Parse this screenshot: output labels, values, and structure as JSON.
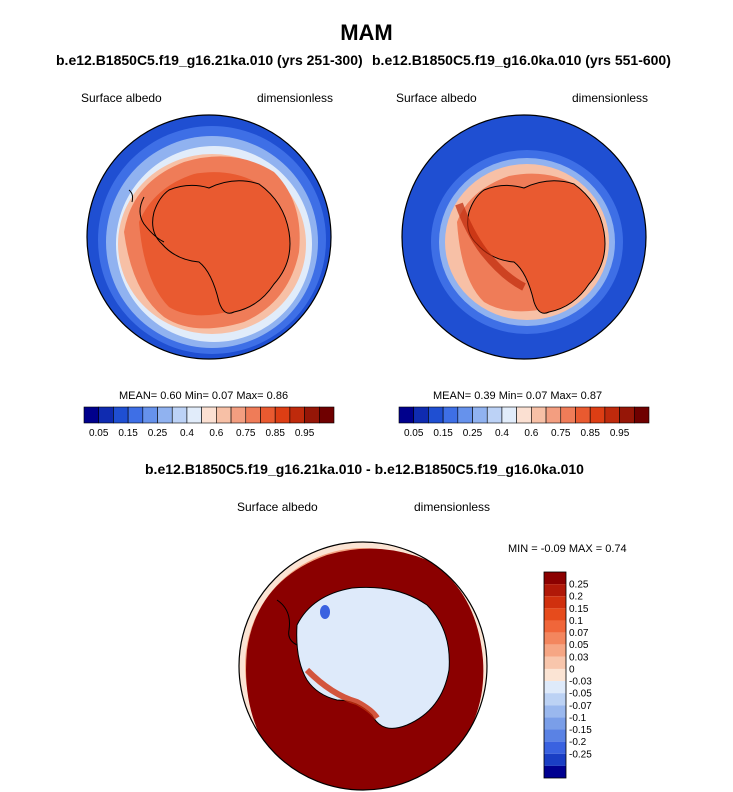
{
  "page": {
    "title": "MAM",
    "diff_title": "b.e12.B1850C5.f19_g16.21ka.010 - b.e12.B1850C5.f19_g16.0ka.010"
  },
  "panels": [
    {
      "case": "b.e12.B1850C5.f19_g16.21ka.010 (yrs 251-300)",
      "variable": "Surface albedo",
      "units": "dimensionless",
      "stats": "MEAN=   0.60  Min=   0.07  Max=   0.86"
    },
    {
      "case": "b.e12.B1850C5.f19_g16.0ka.010 (yrs 551-600)",
      "variable": "Surface albedo",
      "units": "dimensionless",
      "stats": "MEAN=   0.39  Min=   0.07  Max=   0.87"
    },
    {
      "variable": "Surface albedo",
      "units": "dimensionless",
      "stats": "MIN =  -0.09 MAX =   0.74"
    }
  ],
  "colorbar_h": {
    "colors": [
      "#00008c",
      "#0f2bb0",
      "#1f4fd2",
      "#3e6fe6",
      "#6692ec",
      "#90b2f0",
      "#bcd2f6",
      "#e1ecfa",
      "#fbe0d2",
      "#f7c0a6",
      "#f39e80",
      "#ef7c58",
      "#e95a30",
      "#dd3e14",
      "#bf2a0c",
      "#961607",
      "#6f0000"
    ],
    "labels": [
      "0.05",
      "0.15",
      "0.25",
      "0.4",
      "0.6",
      "0.75",
      "0.85",
      "0.95"
    ]
  },
  "colorbar_v": {
    "colors": [
      "#8b0000",
      "#b01808",
      "#d0300e",
      "#e64b1c",
      "#f0663a",
      "#f3865e",
      "#f6a684",
      "#f8c6ac",
      "#fbe4d4",
      "#deeafa",
      "#bcd2f4",
      "#9ab8ee",
      "#7a9ee8",
      "#5a82e4",
      "#3a62e0",
      "#1a3ec4",
      "#000090"
    ],
    "labels": [
      "0.25",
      "0.2",
      "0.15",
      "0.1",
      "0.07",
      "0.05",
      "0.03",
      "0",
      "-0.03",
      "-0.05",
      "-0.07",
      "-0.1",
      "-0.15",
      "-0.2",
      "-0.25"
    ]
  }
}
